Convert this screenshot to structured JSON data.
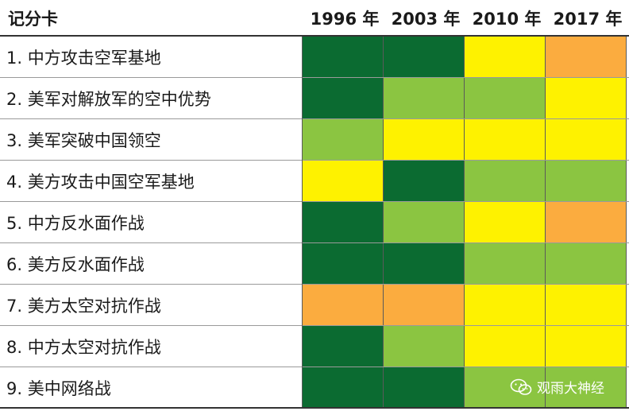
{
  "chart_data": {
    "type": "table",
    "title": "记分卡",
    "columns": [
      "1996 年",
      "2003 年",
      "2010 年",
      "2017 年"
    ],
    "rows": [
      {
        "label": "1. 中方攻击空军基地",
        "ratings": [
          "dark_green",
          "dark_green",
          "yellow",
          "orange"
        ]
      },
      {
        "label": "2. 美军对解放军的空中优势",
        "ratings": [
          "dark_green",
          "light_green",
          "light_green",
          "yellow"
        ]
      },
      {
        "label": "3. 美军突破中国领空",
        "ratings": [
          "light_green",
          "yellow",
          "yellow",
          "yellow"
        ]
      },
      {
        "label": "4. 美方攻击中国空军基地",
        "ratings": [
          "yellow",
          "dark_green",
          "light_green",
          "light_green"
        ]
      },
      {
        "label": "5. 中方反水面作战",
        "ratings": [
          "dark_green",
          "light_green",
          "yellow",
          "orange"
        ]
      },
      {
        "label": "6. 美方反水面作战",
        "ratings": [
          "dark_green",
          "dark_green",
          "light_green",
          "light_green"
        ]
      },
      {
        "label": "7. 美方太空对抗作战",
        "ratings": [
          "orange",
          "orange",
          "yellow",
          "yellow"
        ]
      },
      {
        "label": "8. 中方太空对抗作战",
        "ratings": [
          "dark_green",
          "light_green",
          "yellow",
          "yellow"
        ]
      },
      {
        "label": "9. 美中网络战",
        "ratings": [
          "dark_green",
          "dark_green",
          "light_green",
          "light_green"
        ]
      }
    ],
    "rating_colors": {
      "dark_green": "#0b6b31",
      "light_green": "#8bc541",
      "yellow": "#fef200",
      "orange": "#fbac3f"
    }
  },
  "watermark": {
    "text": "观雨大神经",
    "icon": "wechat-icon"
  }
}
